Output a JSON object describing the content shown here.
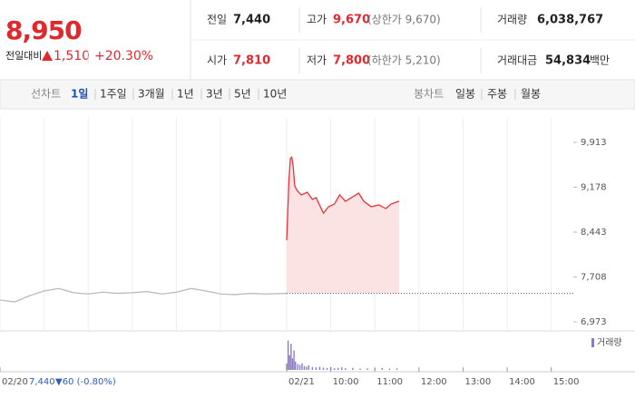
{
  "header": {
    "price": "8,950",
    "change_label": "전일대비",
    "change": "1,510",
    "change_pct": "+20.30%",
    "stats": [
      {
        "label": "전일",
        "value": "7,440"
      },
      {
        "label": "고가",
        "value": "9,670",
        "note": "(상한가 9,670)"
      },
      {
        "label": "거래량",
        "value": "6,038,767"
      },
      {
        "label": "시가",
        "value": "7,810"
      },
      {
        "label": "저가",
        "value": "7,800",
        "note": "(하한가 5,210)"
      },
      {
        "label": "거래대금",
        "value": "54,834",
        "unit": "백만"
      }
    ]
  },
  "tabs": {
    "line_label": "선차트",
    "line_periods": [
      "1일",
      "1주일",
      "3개월",
      "1년",
      "3년",
      "5년",
      "10년"
    ],
    "selected": 0,
    "candle_label": "봉차트",
    "candle_periods": [
      "일봉",
      "주봉",
      "월봉"
    ]
  },
  "summary": {
    "value": "7,440",
    "change": "▼60 (-0.80%)"
  },
  "chart_data": [
    {
      "type": "line",
      "xlim": [
        0,
        780
      ],
      "ylim": [
        6825,
        10314
      ],
      "yticks": [
        {
          "value": 9913,
          "label": "9,913"
        },
        {
          "value": 9178,
          "label": "9,178"
        },
        {
          "value": 8443,
          "label": "8,443"
        },
        {
          "value": 7708,
          "label": "7,708"
        },
        {
          "value": 6973,
          "label": "6,973"
        }
      ],
      "xticks": [
        {
          "value": 0,
          "label": "02/20"
        },
        {
          "value": 390,
          "label": "02/21"
        },
        {
          "value": 450,
          "label": "10:00"
        },
        {
          "value": 510,
          "label": "11:00"
        },
        {
          "value": 570,
          "label": "12:00"
        },
        {
          "value": 630,
          "label": "13:00"
        },
        {
          "value": 690,
          "label": "14:00"
        },
        {
          "value": 750,
          "label": "15:00"
        }
      ],
      "xgrid": [
        60,
        120,
        180,
        240,
        300
      ],
      "reference_line": 7440,
      "series": [
        {
          "color": "#bbbbbb",
          "x": [
            0,
            20,
            40,
            60,
            80,
            100,
            120,
            140,
            160,
            180,
            200,
            220,
            240,
            260,
            280,
            300,
            320,
            340,
            360,
            390
          ],
          "values": [
            7330,
            7300,
            7400,
            7480,
            7520,
            7450,
            7430,
            7460,
            7440,
            7450,
            7470,
            7430,
            7460,
            7520,
            7480,
            7430,
            7420,
            7440,
            7430,
            7440
          ]
        },
        {
          "color": "#e8313a",
          "fill": "#fbe3e4",
          "x": [
            390,
            391,
            393,
            395,
            397,
            399,
            401,
            404,
            410,
            418,
            425,
            430,
            440,
            447,
            455,
            462,
            470,
            478,
            488,
            495,
            505,
            515,
            525,
            532,
            543
          ],
          "values": [
            8310,
            8606,
            9275,
            9646,
            9670,
            9497,
            9200,
            9126,
            9052,
            9096,
            8978,
            9007,
            8755,
            8859,
            8903,
            9052,
            8948,
            9007,
            9081,
            8948,
            8859,
            8889,
            8829,
            8903,
            8950
          ]
        }
      ]
    },
    {
      "type": "bar",
      "xlim": [
        0,
        780
      ],
      "ylim": [
        0,
        100
      ],
      "series": [
        {
          "name": "거래량",
          "color": "#8e7cc3",
          "x": [
            390,
            392,
            394,
            396,
            398,
            400,
            402,
            405,
            408,
            411,
            414,
            417,
            420,
            425,
            430,
            435,
            440,
            445,
            450,
            455,
            460,
            465,
            470,
            480,
            490,
            500,
            510,
            520,
            530,
            540
          ],
          "values": [
            20,
            90,
            45,
            80,
            35,
            60,
            25,
            18,
            15,
            20,
            12,
            10,
            14,
            9,
            8,
            10,
            7,
            6,
            9,
            5,
            6,
            8,
            5,
            6,
            4,
            5,
            4,
            6,
            4,
            5
          ]
        }
      ]
    }
  ]
}
